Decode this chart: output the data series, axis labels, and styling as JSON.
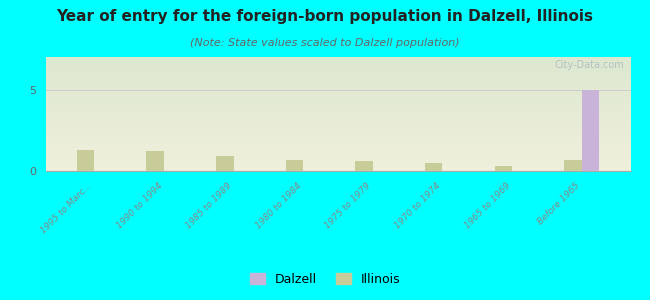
{
  "title": "Year of entry for the foreign-born population in Dalzell, Illinois",
  "subtitle": "(Note: State values scaled to Dalzell population)",
  "categories": [
    "1995 to Marc...",
    "1990 to 1994",
    "1985 to 1989",
    "1980 to 1984",
    "1975 to 1979",
    "1970 to 1974",
    "1965 to 1969",
    "Before 1965"
  ],
  "dalzell_values": [
    0,
    0,
    0,
    0,
    0,
    0,
    0,
    5
  ],
  "illinois_values": [
    1.3,
    1.2,
    0.9,
    0.7,
    0.6,
    0.5,
    0.3,
    0.7
  ],
  "dalzell_color": "#c9b3d9",
  "illinois_color": "#c8cc99",
  "background_color": "#00FFFF",
  "plot_bg_color_top": "#dde8d0",
  "plot_bg_color_bottom": "#f0f0dc",
  "ylim": [
    0,
    7
  ],
  "yticks": [
    0,
    5
  ],
  "bar_width": 0.25,
  "watermark": "City-Data.com",
  "legend_dalzell": "Dalzell",
  "legend_illinois": "Illinois",
  "title_fontsize": 11,
  "subtitle_fontsize": 8
}
